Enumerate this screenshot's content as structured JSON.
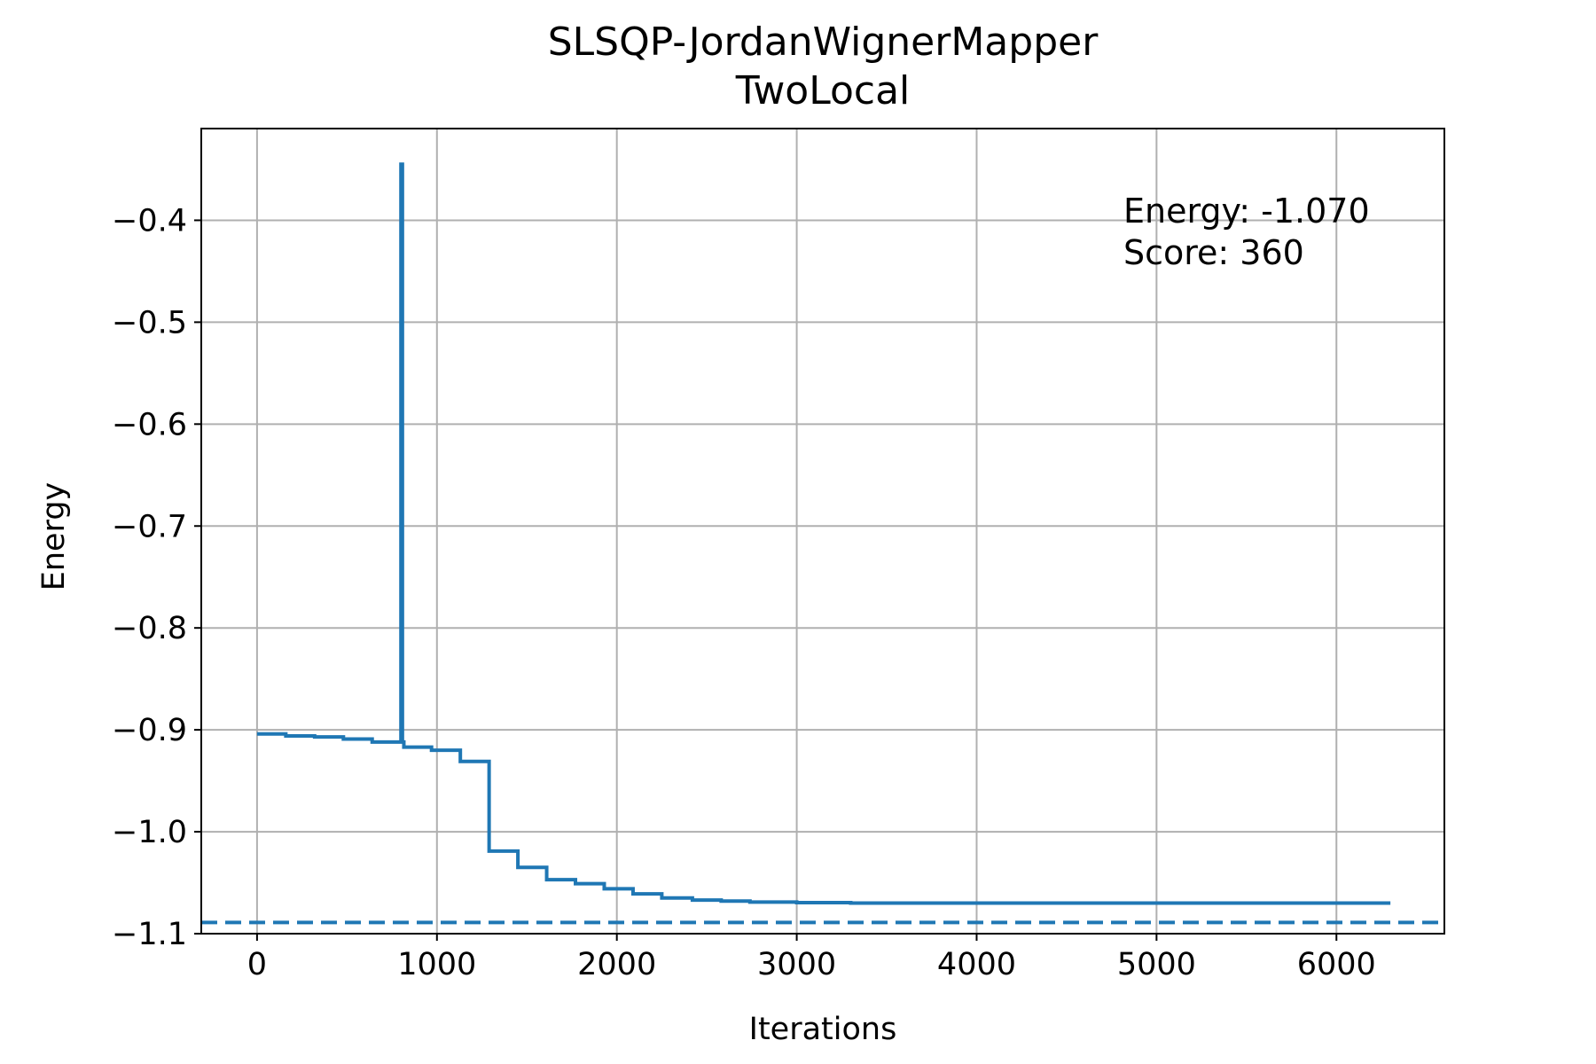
{
  "chart_data": {
    "type": "line",
    "title": "SLSQP-JordanWignerMapper",
    "subtitle": "TwoLocal",
    "xlabel": "Iterations",
    "ylabel": "Energy",
    "xlim": [
      -310,
      6600
    ],
    "ylim": [
      -1.1,
      -0.31
    ],
    "grid": true,
    "xticks": [
      0,
      1000,
      2000,
      3000,
      4000,
      5000,
      6000
    ],
    "xtick_labels": [
      "0",
      "1000",
      "2000",
      "3000",
      "4000",
      "5000",
      "6000"
    ],
    "yticks": [
      -0.4,
      -0.5,
      -0.6,
      -0.7,
      -0.8,
      -0.9,
      -1.0,
      -1.1
    ],
    "ytick_labels": [
      "−0.4",
      "−0.5",
      "−0.6",
      "−0.7",
      "−0.8",
      "−0.9",
      "−1.0",
      "−1.1"
    ],
    "annotations": [
      "Energy: -1.070",
      "Score: 360"
    ],
    "colors": {
      "series": "#1f77b4",
      "grid": "#b0b0b0",
      "axes": "#000000"
    },
    "series": [
      {
        "style": "solid",
        "x": [
          0,
          160,
          160,
          320,
          320,
          480,
          480,
          640,
          640,
          800,
          800,
          808,
          808,
          816,
          816,
          970,
          970,
          1130,
          1130,
          1290,
          1290,
          1450,
          1450,
          1610,
          1610,
          1770,
          1770,
          1930,
          1930,
          2090,
          2090,
          2250,
          2250,
          2420,
          2420,
          2580,
          2580,
          2740,
          2740,
          3000,
          3000,
          3300,
          3300,
          6300
        ],
        "y": [
          -0.904,
          -0.904,
          -0.906,
          -0.906,
          -0.907,
          -0.907,
          -0.909,
          -0.909,
          -0.912,
          -0.912,
          -0.345,
          -0.345,
          -0.912,
          -0.912,
          -0.917,
          -0.917,
          -0.92,
          -0.92,
          -0.931,
          -0.931,
          -1.019,
          -1.019,
          -1.035,
          -1.035,
          -1.047,
          -1.047,
          -1.051,
          -1.051,
          -1.056,
          -1.056,
          -1.061,
          -1.061,
          -1.065,
          -1.065,
          -1.067,
          -1.067,
          -1.068,
          -1.068,
          -1.069,
          -1.069,
          -1.0695,
          -1.0695,
          -1.07,
          -1.07
        ]
      },
      {
        "style": "dashed",
        "reference_y": -1.089
      }
    ]
  }
}
